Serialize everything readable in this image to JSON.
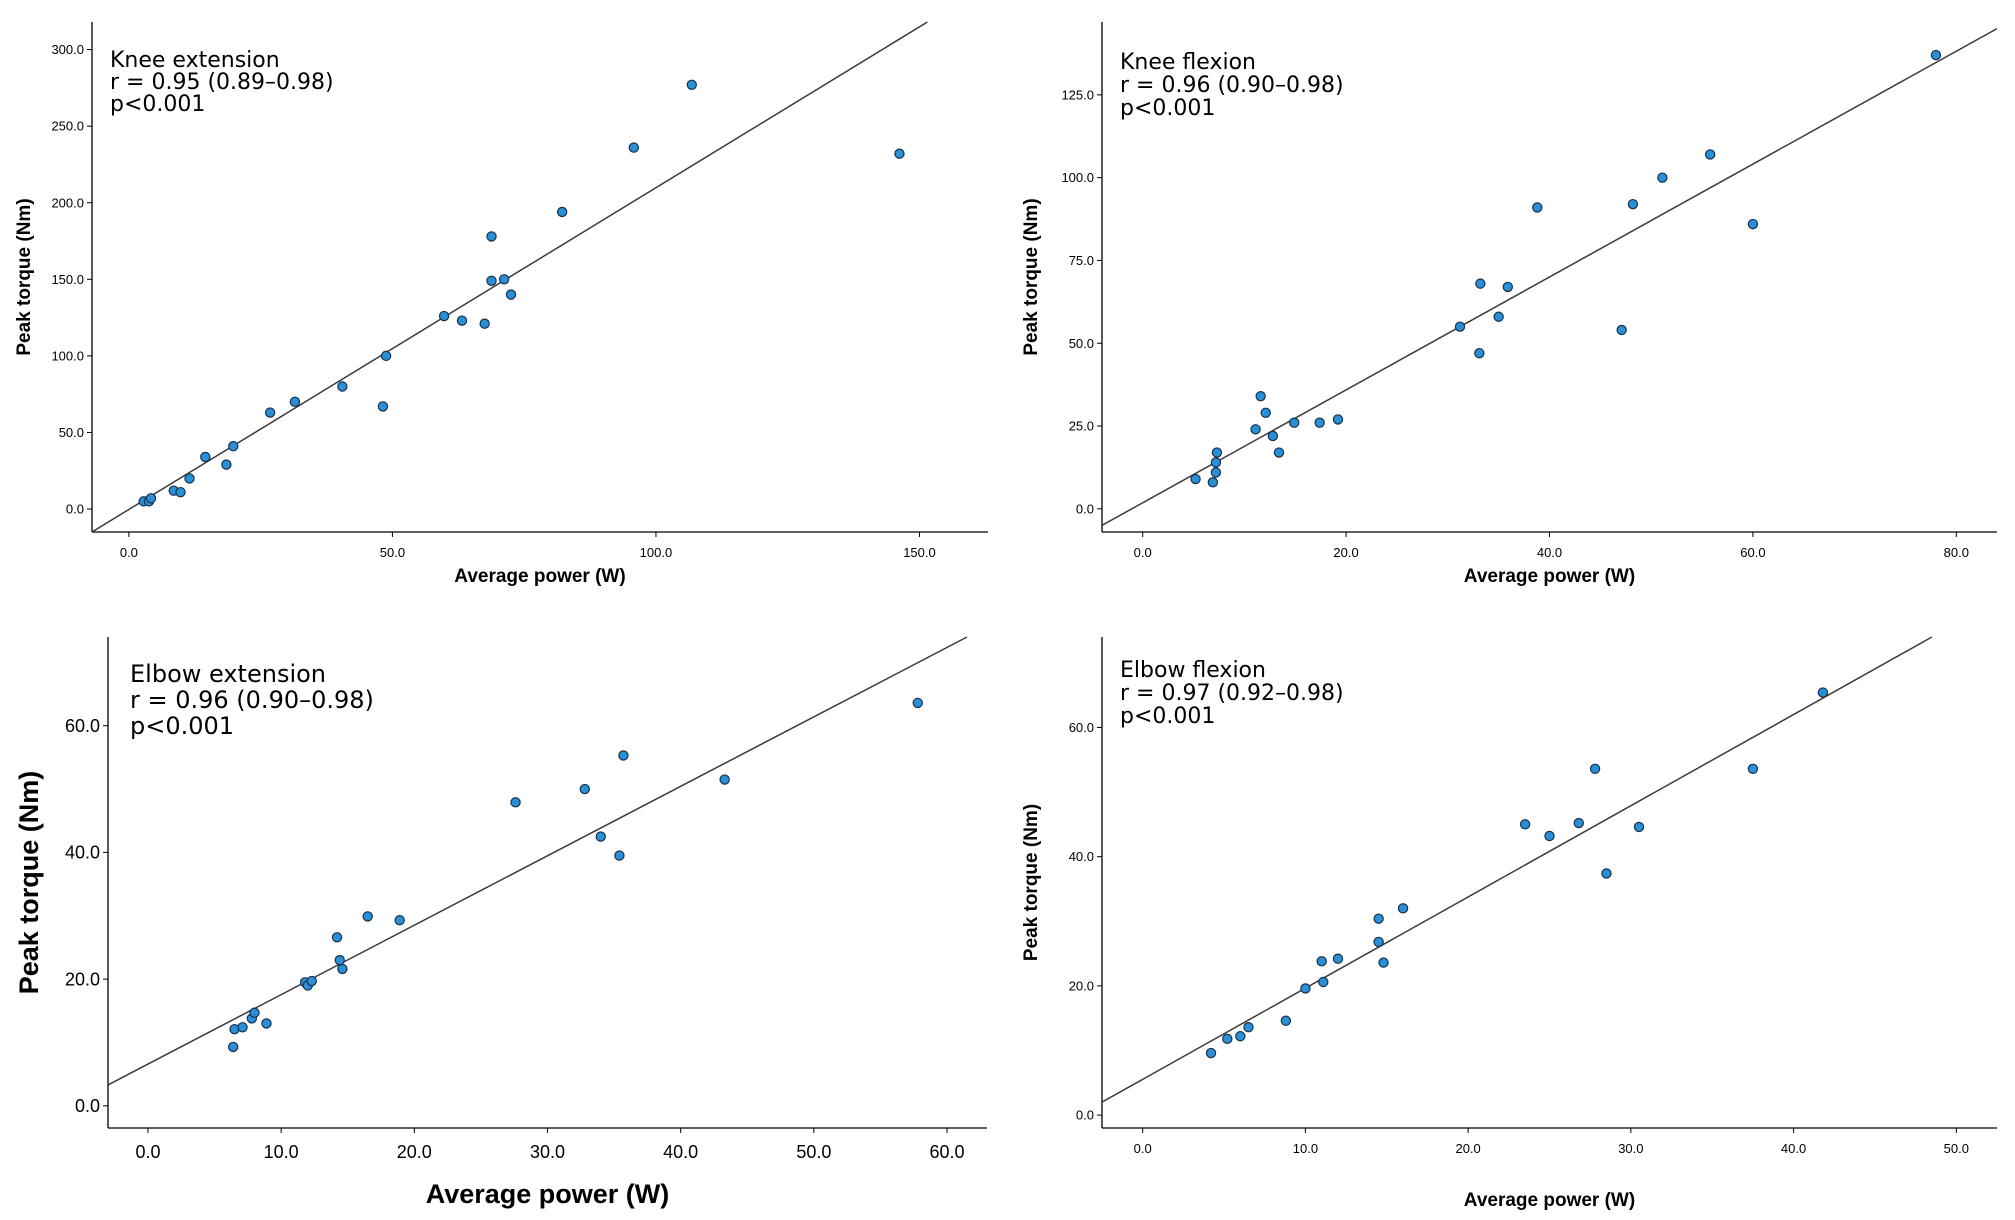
{
  "chart_data": [
    {
      "type": "scatter",
      "title": "Knee extension",
      "stats": {
        "r": "r = 0.95 (0.89–0.98)",
        "p": "p<0.001"
      },
      "xlabel": "Average power (W)",
      "ylabel": "Peak torque (Nm)",
      "xlim": [
        -7,
        163
      ],
      "ylim": [
        -15,
        318
      ],
      "xticks": [
        0,
        50,
        100,
        150
      ],
      "yticks": [
        0,
        50,
        100,
        150,
        200,
        250,
        300
      ],
      "tick_format": 1,
      "fit_line": {
        "x": [
          -7,
          151.5
        ],
        "y": [
          -15,
          318
        ]
      },
      "x": [
        2.8,
        3.8,
        4.2,
        8.5,
        9.8,
        11.5,
        14.5,
        18.5,
        19.8,
        26.8,
        31.5,
        40.5,
        48.2,
        48.8,
        59.8,
        63.2,
        67.5,
        68.8,
        68.8,
        71.2,
        72.5,
        82.2,
        95.8,
        106.8,
        146.2
      ],
      "y": [
        5,
        5,
        7,
        12,
        11,
        20,
        34,
        29,
        41,
        63,
        70,
        80,
        67,
        100,
        126,
        123,
        121,
        178,
        149,
        150,
        140,
        194,
        236,
        277,
        232
      ]
    },
    {
      "type": "scatter",
      "title": "Knee flexion",
      "stats": {
        "r": "r = 0.96 (0.90–0.98)",
        "p": "p<0.001"
      },
      "xlabel": "Average power (W)",
      "ylabel": "Peak torque (Nm)",
      "xlim": [
        -4,
        84
      ],
      "ylim": [
        -7,
        147
      ],
      "xticks": [
        0,
        20,
        40,
        60,
        80
      ],
      "yticks": [
        0,
        25,
        50,
        75,
        100,
        125
      ],
      "tick_format": 1,
      "fit_line": {
        "x": [
          -4,
          84
        ],
        "y": [
          -5,
          145
        ]
      },
      "x": [
        5.2,
        6.9,
        7.2,
        7.2,
        7.3,
        11.1,
        11.6,
        12.1,
        12.8,
        13.4,
        14.9,
        17.4,
        19.2,
        31.2,
        33.1,
        33.2,
        35.0,
        35.9,
        38.8,
        47.1,
        48.2,
        51.1,
        55.8,
        60.0,
        78.0
      ],
      "y": [
        9,
        8,
        11,
        14,
        17,
        24,
        34,
        29,
        22,
        17,
        26,
        26,
        27,
        55,
        47,
        68,
        58,
        67,
        91,
        54,
        92,
        100,
        107,
        86,
        137
      ]
    },
    {
      "type": "scatter",
      "title": "Elbow extension",
      "stats": {
        "r": "r = 0.96 (0.90–0.98)",
        "p": "p<0.001"
      },
      "xlabel": "Average power (W)",
      "ylabel": "Peak torque (Nm)",
      "xlim": [
        -3,
        63
      ],
      "ylim": [
        -3.5,
        74
      ],
      "xticks": [
        0,
        10,
        20,
        30,
        40,
        50,
        60
      ],
      "yticks": [
        0,
        20,
        40,
        60
      ],
      "tick_format": 1,
      "fit_line": {
        "x": [
          -3,
          61.5
        ],
        "y": [
          3.3,
          74
        ]
      },
      "x": [
        6.4,
        6.5,
        7.1,
        7.8,
        8.0,
        8.9,
        11.8,
        12.0,
        12.3,
        14.2,
        14.4,
        14.6,
        16.5,
        18.9,
        27.6,
        32.8,
        34.0,
        35.4,
        35.7,
        43.3,
        57.8
      ],
      "y": [
        9.3,
        12.1,
        12.4,
        13.8,
        14.7,
        13,
        19.5,
        19,
        19.7,
        26.6,
        23,
        21.6,
        29.9,
        29.3,
        47.9,
        50,
        42.5,
        39.5,
        55.3,
        51.5,
        63.6
      ]
    },
    {
      "type": "scatter",
      "title": "Elbow flexion",
      "stats": {
        "r": "r = 0.97 (0.92–0.98)",
        "p": "p<0.001"
      },
      "xlabel": "Average power (W)",
      "ylabel": "Peak torque (Nm)",
      "xlim": [
        -2.5,
        52.5
      ],
      "ylim": [
        -2,
        74
      ],
      "xticks": [
        0,
        10,
        20,
        30,
        40,
        50
      ],
      "yticks": [
        0,
        20,
        40,
        60
      ],
      "tick_format": 1,
      "fit_line": {
        "x": [
          -2.5,
          48.5
        ],
        "y": [
          2,
          74
        ]
      },
      "x": [
        4.2,
        5.2,
        6.0,
        6.5,
        8.8,
        10.0,
        11.0,
        11.1,
        12.0,
        14.5,
        14.5,
        14.8,
        16.0,
        23.5,
        25.0,
        26.8,
        27.8,
        28.5,
        30.5,
        37.5,
        41.8
      ],
      "y": [
        9.6,
        11.8,
        12.2,
        13.6,
        14.6,
        19.6,
        23.8,
        20.6,
        24.2,
        30.4,
        26.8,
        23.6,
        32,
        45,
        43.2,
        45.2,
        53.6,
        37.4,
        44.6,
        53.6,
        65.4
      ]
    }
  ]
}
